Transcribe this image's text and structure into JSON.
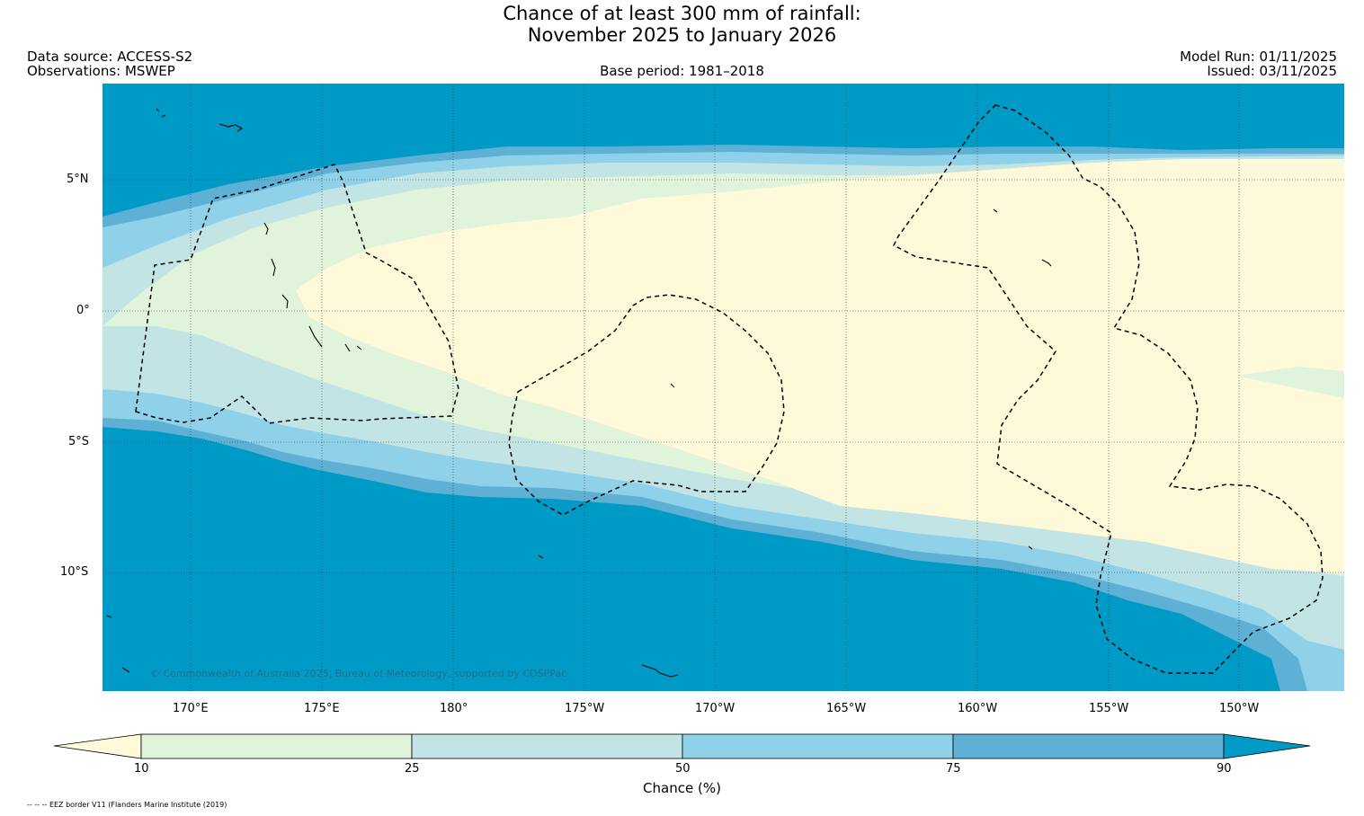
{
  "title_line1": "Chance of at least 300 mm of rainfall:",
  "title_line2": "November 2025 to January 2026",
  "data_source": "Data source: ACCESS-S2",
  "observations": "Observations: MSWEP",
  "base_period": "Base period: 1981–2018",
  "model_run": "Model Run: 01/11/2025",
  "issued": "Issued: 03/11/2025",
  "copyright": "© Commonwealth of Australia 2025, Bureau of Meteorology, supported by COSPPac",
  "lat_labels": [
    "5°N",
    "0°",
    "5°S",
    "10°S"
  ],
  "lon_labels": [
    "170°E",
    "175°E",
    "180°",
    "175°W",
    "170°W",
    "165°W",
    "160°W",
    "155°W",
    "150°W"
  ],
  "colorbar": {
    "label": "Chance (%)",
    "ticks": [
      "10",
      "25",
      "50",
      "75",
      "90"
    ],
    "colors": [
      "#fef9d8",
      "#e0f3db",
      "#c2e4e4",
      "#8fd1e8",
      "#5eb0d4",
      "#009ac7"
    ]
  },
  "footnote": "-- -- -- EEZ border V11 (Flanders Marine Institute (2019)"
}
